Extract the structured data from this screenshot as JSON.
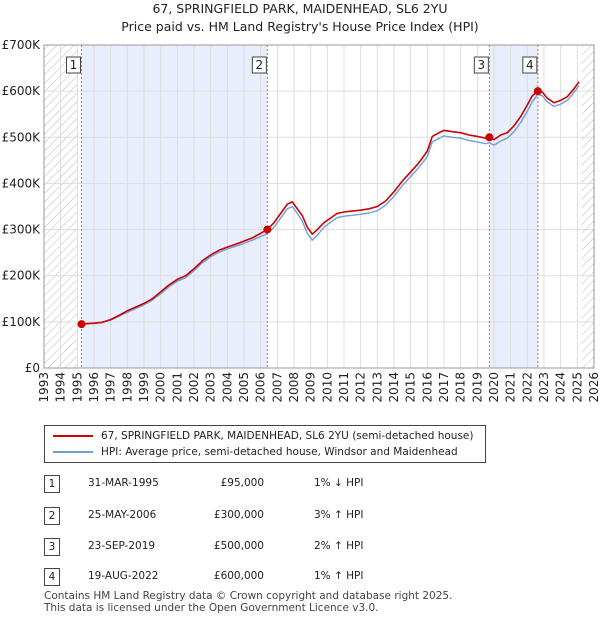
{
  "title_line1": "67, SPRINGFIELD PARK, MAIDENHEAD, SL6 2YU",
  "title_line2": "Price paid vs. HM Land Registry's House Price Index (HPI)",
  "chart_data": {
    "type": "line",
    "xlim": [
      1993,
      2026
    ],
    "ylim": [
      0,
      700000
    ],
    "x_ticks": [
      1993,
      1994,
      1995,
      1996,
      1997,
      1998,
      1999,
      2000,
      2001,
      2002,
      2003,
      2004,
      2005,
      2006,
      2007,
      2008,
      2009,
      2010,
      2011,
      2012,
      2013,
      2014,
      2015,
      2016,
      2017,
      2018,
      2019,
      2020,
      2021,
      2022,
      2023,
      2024,
      2025,
      2026
    ],
    "y_ticks": [
      {
        "value": 0,
        "label": "£0"
      },
      {
        "value": 100000,
        "label": "£100K"
      },
      {
        "value": 200000,
        "label": "£200K"
      },
      {
        "value": 300000,
        "label": "£300K"
      },
      {
        "value": 400000,
        "label": "£400K"
      },
      {
        "value": 500000,
        "label": "£500K"
      },
      {
        "value": 600000,
        "label": "£600K"
      },
      {
        "value": 700000,
        "label": "£700K"
      }
    ],
    "hatched_before": 1995.0,
    "hatched_after": 2025.25,
    "shaded_spans": [
      [
        1995.25,
        2006.4
      ],
      [
        2019.72,
        2022.63
      ]
    ],
    "series": [
      {
        "name": "67, SPRINGFIELD PARK, MAIDENHEAD, SL6 2YU (semi-detached house)",
        "color": "#cc0000",
        "points": [
          [
            1995.25,
            95000
          ],
          [
            1995.6,
            96000
          ],
          [
            1996.0,
            97000
          ],
          [
            1996.5,
            99000
          ],
          [
            1997.0,
            105000
          ],
          [
            1997.5,
            114000
          ],
          [
            1998.0,
            124000
          ],
          [
            1998.5,
            132000
          ],
          [
            1999.0,
            140000
          ],
          [
            1999.5,
            150000
          ],
          [
            2000.0,
            165000
          ],
          [
            2000.5,
            180000
          ],
          [
            2001.0,
            192000
          ],
          [
            2001.5,
            200000
          ],
          [
            2002.0,
            215000
          ],
          [
            2002.5,
            232000
          ],
          [
            2003.0,
            245000
          ],
          [
            2003.5,
            255000
          ],
          [
            2004.0,
            262000
          ],
          [
            2004.5,
            268000
          ],
          [
            2005.0,
            275000
          ],
          [
            2005.5,
            282000
          ],
          [
            2006.0,
            292000
          ],
          [
            2006.4,
            300000
          ],
          [
            2006.8,
            315000
          ],
          [
            2007.2,
            335000
          ],
          [
            2007.6,
            355000
          ],
          [
            2007.9,
            360000
          ],
          [
            2008.2,
            345000
          ],
          [
            2008.5,
            330000
          ],
          [
            2008.8,
            305000
          ],
          [
            2009.1,
            290000
          ],
          [
            2009.4,
            300000
          ],
          [
            2009.8,
            315000
          ],
          [
            2010.2,
            325000
          ],
          [
            2010.6,
            335000
          ],
          [
            2011.0,
            338000
          ],
          [
            2011.5,
            340000
          ],
          [
            2012.0,
            342000
          ],
          [
            2012.5,
            345000
          ],
          [
            2013.0,
            350000
          ],
          [
            2013.5,
            362000
          ],
          [
            2014.0,
            382000
          ],
          [
            2014.5,
            405000
          ],
          [
            2015.0,
            425000
          ],
          [
            2015.5,
            445000
          ],
          [
            2016.0,
            470000
          ],
          [
            2016.3,
            502000
          ],
          [
            2016.7,
            510000
          ],
          [
            2017.0,
            515000
          ],
          [
            2017.5,
            512000
          ],
          [
            2018.0,
            510000
          ],
          [
            2018.5,
            505000
          ],
          [
            2019.0,
            502000
          ],
          [
            2019.5,
            498000
          ],
          [
            2019.72,
            500000
          ],
          [
            2020.0,
            495000
          ],
          [
            2020.4,
            505000
          ],
          [
            2020.8,
            510000
          ],
          [
            2021.2,
            525000
          ],
          [
            2021.6,
            545000
          ],
          [
            2022.0,
            570000
          ],
          [
            2022.3,
            590000
          ],
          [
            2022.63,
            600000
          ],
          [
            2022.9,
            598000
          ],
          [
            2023.2,
            585000
          ],
          [
            2023.6,
            575000
          ],
          [
            2024.0,
            580000
          ],
          [
            2024.4,
            588000
          ],
          [
            2024.8,
            605000
          ],
          [
            2025.1,
            620000
          ]
        ]
      },
      {
        "name": "HPI: Average price, semi-detached house, Windsor and Maidenhead",
        "color": "#6f9fd8",
        "points": [
          [
            1995.25,
            96000
          ],
          [
            1995.6,
            96500
          ],
          [
            1996.0,
            97000
          ],
          [
            1996.5,
            98500
          ],
          [
            1997.0,
            104000
          ],
          [
            1997.5,
            112000
          ],
          [
            1998.0,
            121000
          ],
          [
            1998.5,
            129000
          ],
          [
            1999.0,
            137000
          ],
          [
            1999.5,
            147000
          ],
          [
            2000.0,
            161000
          ],
          [
            2000.5,
            176000
          ],
          [
            2001.0,
            188000
          ],
          [
            2001.5,
            196000
          ],
          [
            2002.0,
            211000
          ],
          [
            2002.5,
            228000
          ],
          [
            2003.0,
            241000
          ],
          [
            2003.5,
            251000
          ],
          [
            2004.0,
            258000
          ],
          [
            2004.5,
            264000
          ],
          [
            2005.0,
            270000
          ],
          [
            2005.5,
            277000
          ],
          [
            2006.0,
            285000
          ],
          [
            2006.4,
            291000
          ],
          [
            2006.8,
            305000
          ],
          [
            2007.2,
            325000
          ],
          [
            2007.6,
            345000
          ],
          [
            2007.9,
            350000
          ],
          [
            2008.2,
            335000
          ],
          [
            2008.5,
            318000
          ],
          [
            2008.8,
            292000
          ],
          [
            2009.1,
            277000
          ],
          [
            2009.4,
            288000
          ],
          [
            2009.8,
            305000
          ],
          [
            2010.2,
            316000
          ],
          [
            2010.6,
            326000
          ],
          [
            2011.0,
            329000
          ],
          [
            2011.5,
            331000
          ],
          [
            2012.0,
            333000
          ],
          [
            2012.5,
            336000
          ],
          [
            2013.0,
            341000
          ],
          [
            2013.5,
            353000
          ],
          [
            2014.0,
            372000
          ],
          [
            2014.5,
            395000
          ],
          [
            2015.0,
            415000
          ],
          [
            2015.5,
            435000
          ],
          [
            2016.0,
            458000
          ],
          [
            2016.3,
            490000
          ],
          [
            2016.7,
            498000
          ],
          [
            2017.0,
            503000
          ],
          [
            2017.5,
            500000
          ],
          [
            2018.0,
            498000
          ],
          [
            2018.5,
            493000
          ],
          [
            2019.0,
            490000
          ],
          [
            2019.5,
            486000
          ],
          [
            2019.72,
            488000
          ],
          [
            2020.0,
            483000
          ],
          [
            2020.4,
            492000
          ],
          [
            2020.8,
            498000
          ],
          [
            2021.2,
            512000
          ],
          [
            2021.6,
            532000
          ],
          [
            2022.0,
            556000
          ],
          [
            2022.3,
            577000
          ],
          [
            2022.63,
            593000
          ],
          [
            2022.9,
            590000
          ],
          [
            2023.2,
            577000
          ],
          [
            2023.6,
            567000
          ],
          [
            2024.0,
            572000
          ],
          [
            2024.4,
            580000
          ],
          [
            2024.8,
            597000
          ],
          [
            2025.1,
            612000
          ]
        ]
      }
    ],
    "sales": [
      {
        "id": "1",
        "x": 1995.25,
        "y": 95000
      },
      {
        "id": "2",
        "x": 2006.4,
        "y": 300000
      },
      {
        "id": "3",
        "x": 2019.72,
        "y": 500000
      },
      {
        "id": "4",
        "x": 2022.63,
        "y": 600000
      }
    ]
  },
  "legend": {
    "items": [
      {
        "label": "67, SPRINGFIELD PARK, MAIDENHEAD, SL6 2YU (semi-detached house)",
        "color": "#cc0000"
      },
      {
        "label": "HPI: Average price, semi-detached house, Windsor and Maidenhead",
        "color": "#6f9fd8"
      }
    ]
  },
  "sales_table": [
    {
      "num": "1",
      "date": "31-MAR-1995",
      "price": "£95,000",
      "rel": "1% ↓ HPI"
    },
    {
      "num": "2",
      "date": "25-MAY-2006",
      "price": "£300,000",
      "rel": "3% ↑ HPI"
    },
    {
      "num": "3",
      "date": "23-SEP-2019",
      "price": "£500,000",
      "rel": "2% ↑ HPI"
    },
    {
      "num": "4",
      "date": "19-AUG-2022",
      "price": "£600,000",
      "rel": "1% ↑ HPI"
    }
  ],
  "footer": {
    "line1": "Contains HM Land Registry data © Crown copyright and database right 2025.",
    "line2": "This data is licensed under the Open Government Licence v3.0."
  }
}
